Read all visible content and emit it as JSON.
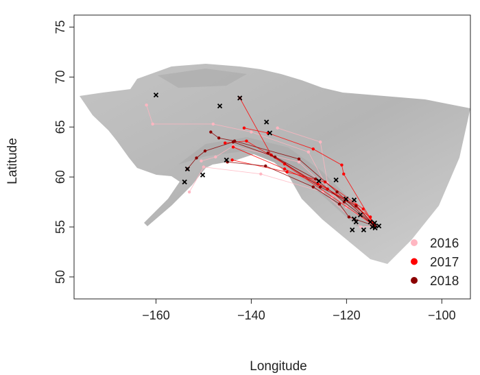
{
  "chart_data": {
    "type": "scatter",
    "title": "",
    "xlabel": "Longitude",
    "ylabel": "Latitude",
    "xlim": [
      -177.2,
      -94.0
    ],
    "ylim": [
      47.8,
      76.2
    ],
    "xticks": [
      -160,
      -140,
      -120,
      -100
    ],
    "xtick_labels": [
      "−160",
      "−140",
      "−120",
      "−100"
    ],
    "yticks": [
      50,
      55,
      60,
      65,
      70,
      75
    ],
    "ytick_labels": [
      "50",
      "55",
      "60",
      "65",
      "70",
      "75"
    ],
    "grid": false,
    "legend": {
      "placement": "bottom-right",
      "entries": [
        {
          "label": "2016",
          "color": "#ffb6c1"
        },
        {
          "label": "2017",
          "color": "#ff0000"
        },
        {
          "label": "2018",
          "color": "#8b0000"
        }
      ]
    },
    "tracks": [
      {
        "year": "2016",
        "points": [
          [
            -162.0,
            67.2
          ],
          [
            -160.7,
            65.3
          ],
          [
            -148.0,
            65.3
          ],
          [
            -140.0,
            64.5
          ],
          [
            -128.0,
            62.5
          ],
          [
            -123.0,
            58.0
          ],
          [
            -114.1,
            55.1
          ]
        ]
      },
      {
        "year": "2016",
        "points": [
          [
            -134.5,
            64.9
          ],
          [
            -125.5,
            63.5
          ],
          [
            -124.0,
            59.4
          ],
          [
            -114.1,
            55.1
          ]
        ]
      },
      {
        "year": "2016",
        "points": [
          [
            -150.5,
            61.6
          ],
          [
            -147.5,
            62.0
          ],
          [
            -143.8,
            63.1
          ],
          [
            -130.0,
            61.5
          ],
          [
            -120.0,
            57.0
          ],
          [
            -114.1,
            55.1
          ]
        ]
      },
      {
        "year": "2016",
        "points": [
          [
            -153.0,
            58.5
          ],
          [
            -150.0,
            61.0
          ],
          [
            -138.0,
            60.3
          ],
          [
            -125.0,
            58.5
          ],
          [
            -117.0,
            55.0
          ],
          [
            -114.1,
            55.1
          ]
        ]
      },
      {
        "year": "2017",
        "points": [
          [
            -142.4,
            67.9
          ],
          [
            -135.8,
            62.2
          ],
          [
            -114.1,
            55.1
          ]
        ]
      },
      {
        "year": "2017",
        "points": [
          [
            -141.5,
            64.9
          ],
          [
            -136.5,
            64.4
          ],
          [
            -127.0,
            62.8
          ],
          [
            -121.0,
            61.2
          ],
          [
            -120.6,
            60.3
          ],
          [
            -114.3,
            55.3
          ]
        ]
      },
      {
        "year": "2017",
        "points": [
          [
            -145.5,
            63.4
          ],
          [
            -141.0,
            63.6
          ],
          [
            -133.0,
            61.3
          ],
          [
            -124.0,
            58.8
          ],
          [
            -115.0,
            56.0
          ],
          [
            -114.1,
            55.1
          ]
        ]
      },
      {
        "year": "2017",
        "points": [
          [
            -143.8,
            63.0
          ],
          [
            -133.0,
            60.8
          ],
          [
            -126.0,
            59.3
          ],
          [
            -118.0,
            57.2
          ],
          [
            -114.1,
            55.1
          ]
        ]
      },
      {
        "year": "2017",
        "points": [
          [
            -144.0,
            61.7
          ],
          [
            -132.5,
            60.5
          ],
          [
            -124.5,
            59.5
          ],
          [
            -116.5,
            56.8
          ],
          [
            -114.1,
            55.1
          ]
        ]
      },
      {
        "year": "2018",
        "points": [
          [
            -153.4,
            60.8
          ],
          [
            -151.5,
            61.9
          ],
          [
            -149.7,
            62.6
          ],
          [
            -143.8,
            63.5
          ],
          [
            -135.0,
            62.0
          ],
          [
            -125.5,
            59.0
          ],
          [
            -118.0,
            57.1
          ],
          [
            -114.1,
            55.1
          ]
        ]
      },
      {
        "year": "2018",
        "points": [
          [
            -148.5,
            64.5
          ],
          [
            -146.8,
            63.9
          ],
          [
            -143.5,
            63.6
          ],
          [
            -130.0,
            61.8
          ],
          [
            -122.0,
            58.5
          ],
          [
            -114.1,
            55.1
          ]
        ]
      },
      {
        "year": "2018",
        "points": [
          [
            -145.0,
            61.5
          ],
          [
            -137.0,
            61.1
          ],
          [
            -127.0,
            59.0
          ],
          [
            -121.5,
            57.3
          ],
          [
            -119.5,
            56.0
          ],
          [
            -114.1,
            55.1
          ]
        ]
      },
      {
        "year": "2018",
        "points": [
          [
            -136.5,
            62.4
          ],
          [
            -126.5,
            59.8
          ],
          [
            -120.5,
            57.5
          ],
          [
            -114.1,
            55.1
          ]
        ]
      }
    ],
    "x_markers": [
      [
        -160.0,
        68.2
      ],
      [
        -146.6,
        67.1
      ],
      [
        -142.4,
        67.9
      ],
      [
        -136.8,
        65.5
      ],
      [
        -136.1,
        64.4
      ],
      [
        -145.2,
        61.7
      ],
      [
        -153.4,
        60.8
      ],
      [
        -154.0,
        59.5
      ],
      [
        -150.2,
        60.2
      ],
      [
        -125.8,
        59.6
      ],
      [
        -122.2,
        59.7
      ],
      [
        -120.1,
        57.8
      ],
      [
        -118.4,
        57.7
      ],
      [
        -117.1,
        56.2
      ],
      [
        -118.4,
        55.8
      ],
      [
        -118.8,
        54.7
      ],
      [
        -118.0,
        55.5
      ],
      [
        -116.4,
        54.7
      ],
      [
        -114.1,
        55.4
      ],
      [
        -114.0,
        54.9
      ],
      [
        -113.2,
        55.1
      ],
      [
        -115.0,
        55.5
      ],
      [
        -114.6,
        55.0
      ]
    ],
    "x_marker_color": "#000000"
  }
}
